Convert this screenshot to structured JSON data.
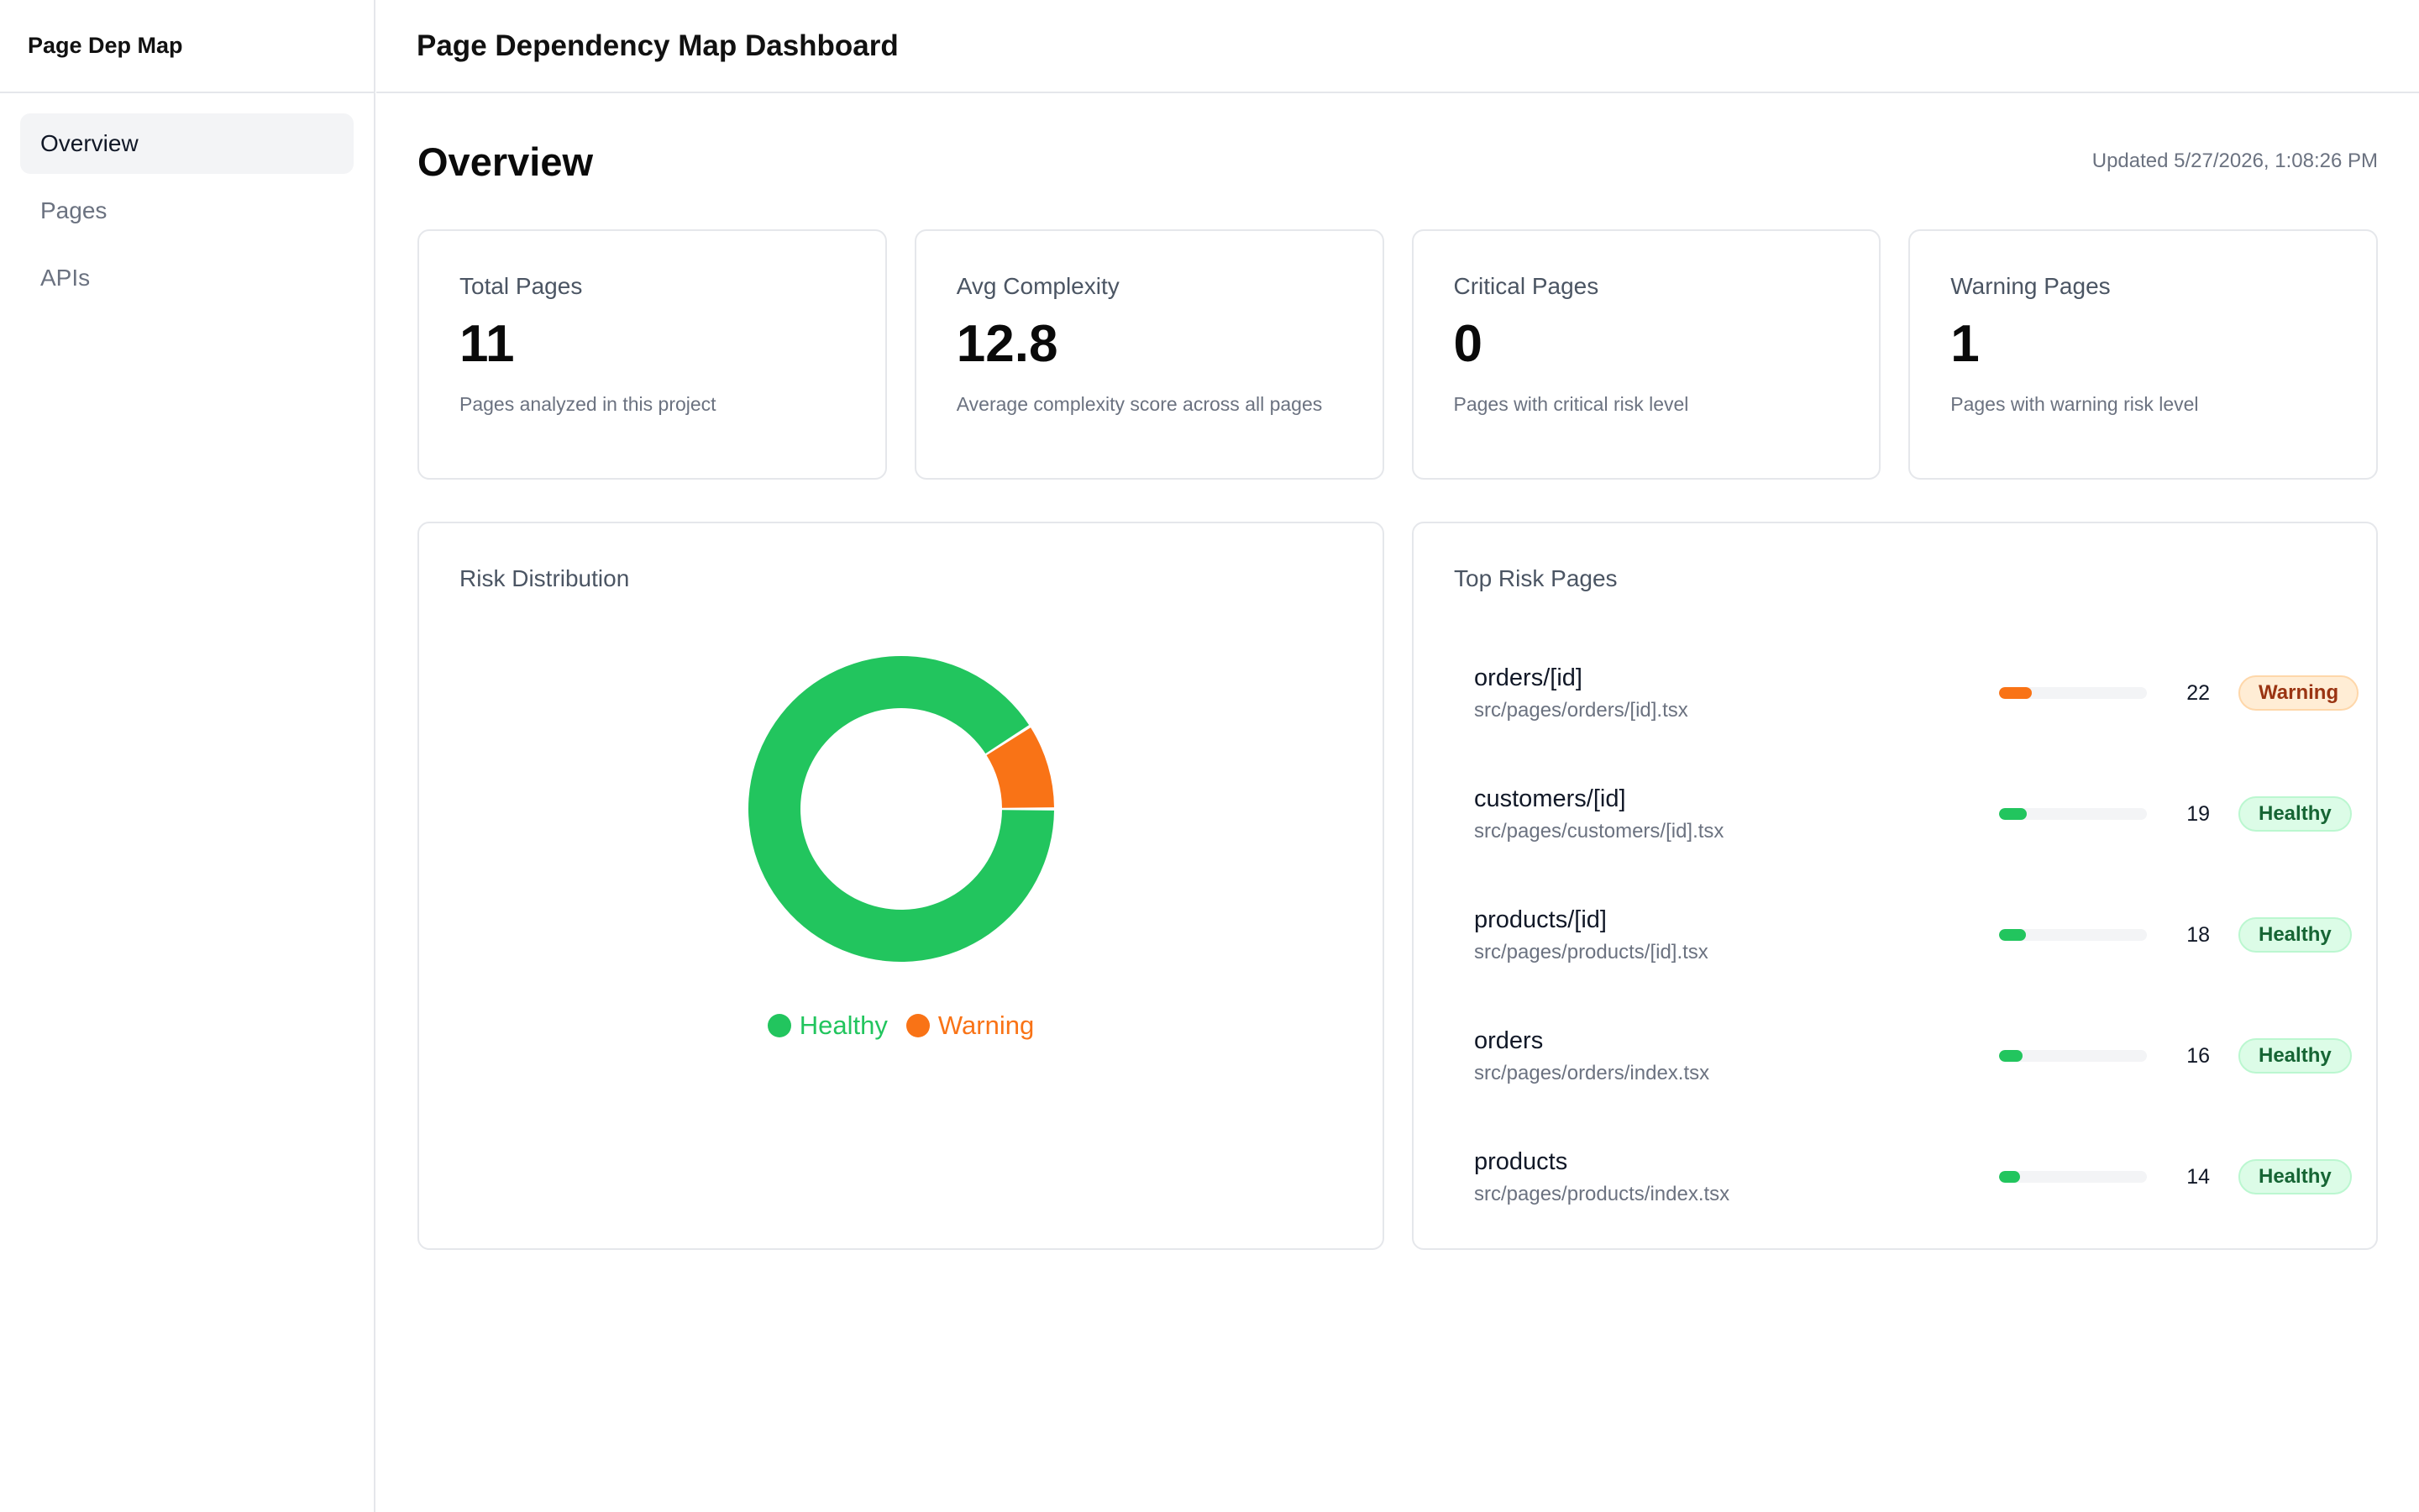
{
  "app": {
    "brand": "Page Dep Map",
    "title": "Page Dependency Map Dashboard"
  },
  "sidebar": {
    "items": [
      {
        "label": "Overview",
        "active": true
      },
      {
        "label": "Pages",
        "active": false
      },
      {
        "label": "APIs",
        "active": false
      }
    ]
  },
  "overview": {
    "title": "Overview",
    "updated": "Updated 5/27/2026, 1:08:26 PM"
  },
  "stats": [
    {
      "label": "Total Pages",
      "value": "11",
      "desc": "Pages analyzed in this project"
    },
    {
      "label": "Avg Complexity",
      "value": "12.8",
      "desc": "Average complexity score across all pages"
    },
    {
      "label": "Critical Pages",
      "value": "0",
      "desc": "Pages with critical risk level"
    },
    {
      "label": "Warning Pages",
      "value": "1",
      "desc": "Pages with warning risk level"
    }
  ],
  "risk_distribution": {
    "title": "Risk Distribution"
  },
  "chart_data": {
    "type": "pie",
    "categories": [
      "Healthy",
      "Warning"
    ],
    "values": [
      10,
      1
    ],
    "colors": [
      "#22c55e",
      "#f97316"
    ],
    "legend": "bottom"
  },
  "top_risk": {
    "title": "Top Risk Pages",
    "max_score": 100,
    "rows": [
      {
        "name": "orders/[id]",
        "path": "src/pages/orders/[id].tsx",
        "score": "22",
        "score_value": 22,
        "status": "Warning",
        "kind": "warning",
        "color": "#f97316"
      },
      {
        "name": "customers/[id]",
        "path": "src/pages/customers/[id].tsx",
        "score": "19",
        "score_value": 19,
        "status": "Healthy",
        "kind": "healthy",
        "color": "#22c55e"
      },
      {
        "name": "products/[id]",
        "path": "src/pages/products/[id].tsx",
        "score": "18",
        "score_value": 18,
        "status": "Healthy",
        "kind": "healthy",
        "color": "#22c55e"
      },
      {
        "name": "orders",
        "path": "src/pages/orders/index.tsx",
        "score": "16",
        "score_value": 16,
        "status": "Healthy",
        "kind": "healthy",
        "color": "#22c55e"
      },
      {
        "name": "products",
        "path": "src/pages/products/index.tsx",
        "score": "14",
        "score_value": 14,
        "status": "Healthy",
        "kind": "healthy",
        "color": "#22c55e"
      }
    ]
  }
}
